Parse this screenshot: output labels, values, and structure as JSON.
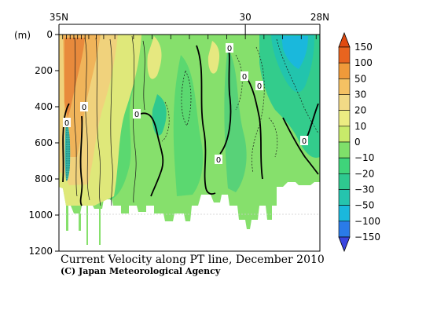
{
  "chart_data": {
    "type": "heatmap",
    "title": "Current Velocity along PT line, December 2010",
    "credit": "(C) Japan Meteorological Agency",
    "y_unit_label": "(m)",
    "x_tick_labels": [
      "35N",
      "30",
      "28N"
    ],
    "x_range": [
      35,
      28
    ],
    "y_ticks": [
      0,
      200,
      400,
      600,
      800,
      1000,
      1200
    ],
    "y_range": [
      0,
      1200
    ],
    "zero_contour_label": "0",
    "colorbar": {
      "levels": [
        "150",
        "100",
        "50",
        "30",
        "20",
        "10",
        "0",
        "−10",
        "−20",
        "−30",
        "−50",
        "−100",
        "−150"
      ],
      "colors": [
        "#e8641f",
        "#f09a3a",
        "#f5c163",
        "#f2da86",
        "#ecec82",
        "#c8ea6a",
        "#7fe06a",
        "#3fd47a",
        "#2ec98f",
        "#25c4ae",
        "#1ab8dc",
        "#2a7be8"
      ],
      "bottom_color": "#3a45e0"
    }
  }
}
